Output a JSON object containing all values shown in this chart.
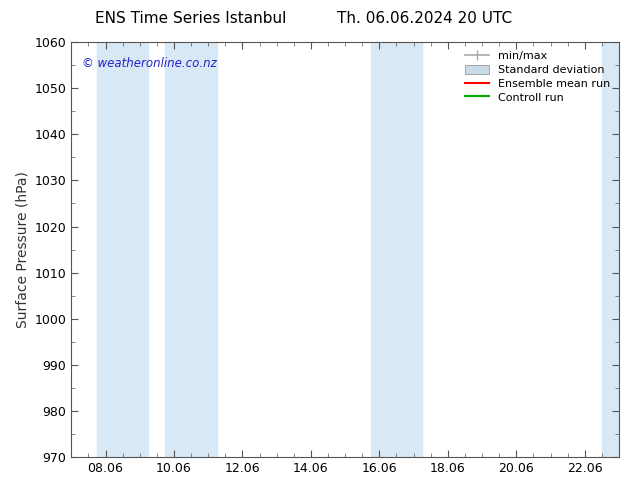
{
  "title_left": "ENS Time Series Istanbul",
  "title_right": "Th. 06.06.2024 20 UTC",
  "ylabel": "Surface Pressure (hPa)",
  "ylim": [
    970,
    1060
  ],
  "yticks": [
    970,
    980,
    990,
    1000,
    1010,
    1020,
    1030,
    1040,
    1050,
    1060
  ],
  "xtick_labels": [
    "08.06",
    "10.06",
    "12.06",
    "14.06",
    "16.06",
    "18.06",
    "20.06",
    "22.06"
  ],
  "xtick_positions": [
    1,
    3,
    5,
    7,
    9,
    11,
    13,
    15
  ],
  "xlim": [
    0,
    16
  ],
  "watermark": "© weatheronline.co.nz",
  "watermark_color": "#2222cc",
  "background_color": "#ffffff",
  "plot_bg_color": "#ffffff",
  "shaded_bands": [
    {
      "x_start": 0.75,
      "x_end": 2.25,
      "color": "#d8e8f5"
    },
    {
      "x_start": 2.75,
      "x_end": 4.25,
      "color": "#d8e8f5"
    },
    {
      "x_start": 8.75,
      "x_end": 10.25,
      "color": "#d8e8f5"
    },
    {
      "x_start": 15.5,
      "x_end": 16.0,
      "color": "#d8e8f5"
    }
  ],
  "legend_items": [
    {
      "label": "min/max",
      "color": "#aaaaaa",
      "type": "errorbar"
    },
    {
      "label": "Standard deviation",
      "color": "#c8dce8",
      "type": "fill"
    },
    {
      "label": "Ensemble mean run",
      "color": "#ff0000",
      "type": "line"
    },
    {
      "label": "Controll run",
      "color": "#00aa00",
      "type": "line"
    }
  ],
  "title_fontsize": 11,
  "tick_fontsize": 9,
  "ylabel_fontsize": 10,
  "legend_fontsize": 8
}
